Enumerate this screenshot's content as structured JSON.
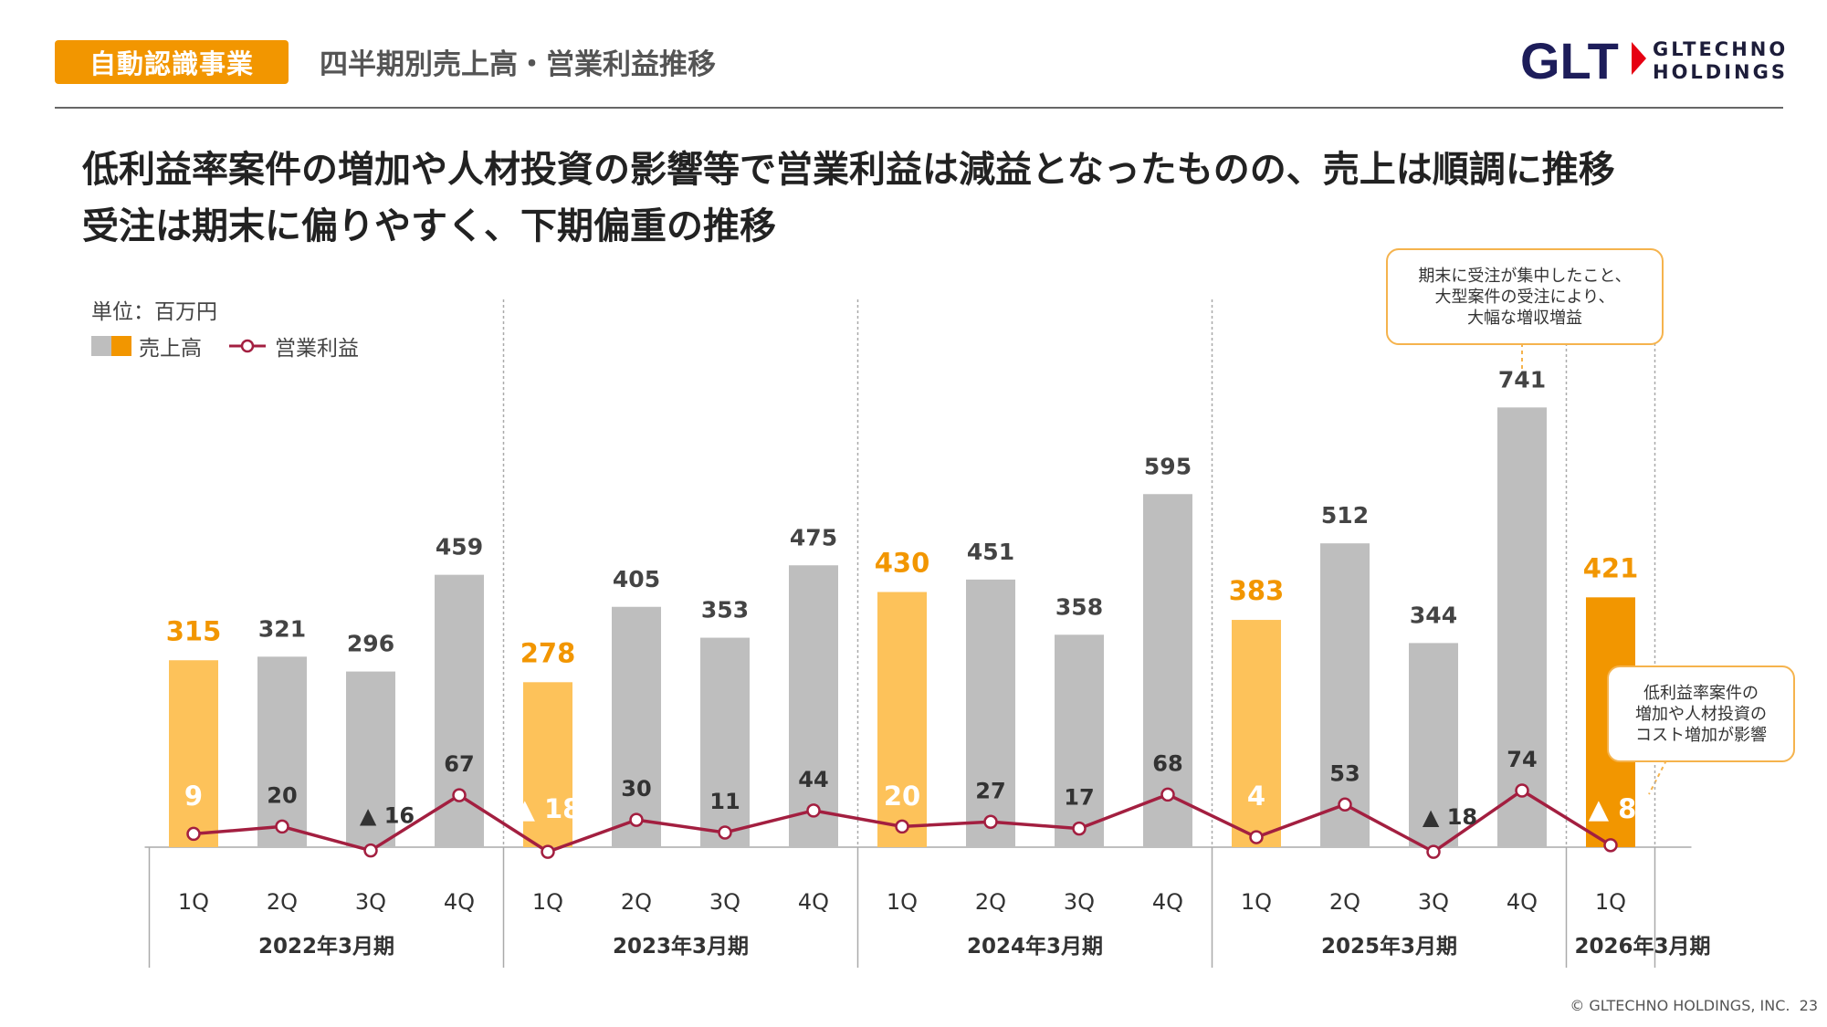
{
  "header": {
    "segment": "自動認識事業",
    "title": "四半期別売上高・営業利益推移",
    "logo_mark": "GLT",
    "logo_text_line1": "GLTECHNO",
    "logo_text_line2": "HOLDINGS"
  },
  "headline": {
    "line1": "低利益率案件の増加や人材投資の影響等で営業利益は減益となったものの、売上は順調に推移",
    "line2": "受注は期末に偏りやすく、下期偏重の推移"
  },
  "unit_label": "単位：百万円",
  "legend": {
    "revenue": "売上高",
    "operating_profit": "営業利益"
  },
  "colors": {
    "accent": "#f29600",
    "q1_bar": "#fdc25a",
    "q1_bar_latest": "#f29600",
    "other_bar": "#bebebe",
    "line": "#a31f40",
    "divider": "#aaaaaa"
  },
  "chart_data": {
    "type": "bar",
    "categories": [
      "1Q",
      "2Q",
      "3Q",
      "4Q",
      "1Q",
      "2Q",
      "3Q",
      "4Q",
      "1Q",
      "2Q",
      "3Q",
      "4Q",
      "1Q",
      "2Q",
      "3Q",
      "4Q",
      "1Q"
    ],
    "fiscal_years": [
      {
        "label": "2022年3月期",
        "quarters": 4
      },
      {
        "label": "2023年3月期",
        "quarters": 4
      },
      {
        "label": "2024年3月期",
        "quarters": 4
      },
      {
        "label": "2025年3月期",
        "quarters": 4
      },
      {
        "label": "2026年3月期",
        "quarters": 1
      }
    ],
    "series": [
      {
        "name": "売上高",
        "type": "bar",
        "values": [
          315,
          321,
          296,
          459,
          278,
          405,
          353,
          475,
          430,
          451,
          358,
          595,
          383,
          512,
          344,
          741,
          421
        ],
        "labels": [
          "315",
          "321",
          "296",
          "459",
          "278",
          "405",
          "353",
          "475",
          "430",
          "451",
          "358",
          "595",
          "383",
          "512",
          "344",
          "741",
          "421"
        ]
      },
      {
        "name": "営業利益",
        "type": "line",
        "values": [
          9,
          20,
          -16,
          67,
          -18,
          30,
          11,
          44,
          20,
          27,
          17,
          68,
          4,
          53,
          -18,
          74,
          -8
        ],
        "labels": [
          "9",
          "20",
          "▲ 16",
          "67",
          "▲ 18",
          "30",
          "11",
          "44",
          "20",
          "27",
          "17",
          "68",
          "4",
          "53",
          "▲ 18",
          "74",
          "▲ 8"
        ]
      }
    ],
    "legend_position": "top-left"
  },
  "callouts": {
    "c1_line1": "期末に受注が集中したこと、",
    "c1_line2": "大型案件の受注により、",
    "c1_line3": "大幅な増収増益",
    "c2_line1": "低利益率案件の",
    "c2_line2": "増加や人材投資の",
    "c2_line3": "コスト増加が影響"
  },
  "footer": {
    "copyright": "© GLTECHNO HOLDINGS, INC.",
    "page_number": "23"
  }
}
